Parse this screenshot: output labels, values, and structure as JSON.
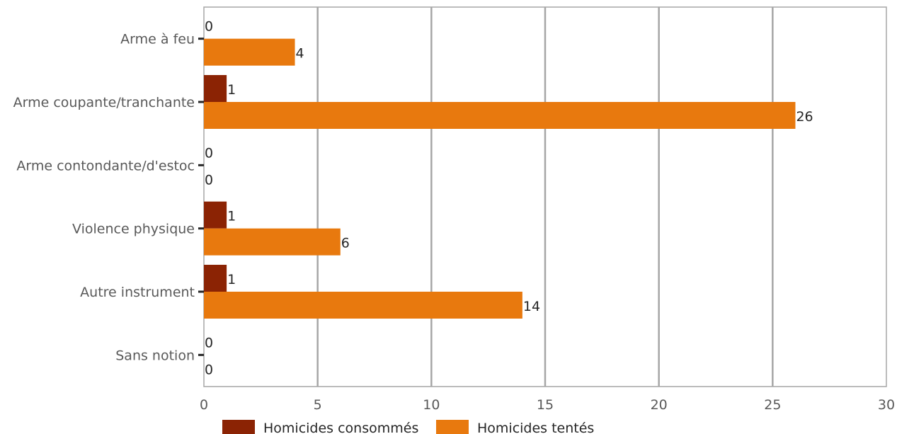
{
  "chart_data": {
    "type": "bar",
    "orientation": "horizontal",
    "categories": [
      "Arme à feu",
      "Arme coupante/tranchante",
      "Arme contondante/d'estoc",
      "Violence physique",
      "Autre instrument",
      "Sans notion"
    ],
    "series": [
      {
        "name": "Homicides consommés",
        "values": [
          0,
          1,
          0,
          1,
          1,
          0
        ],
        "color": "#8B2304"
      },
      {
        "name": "Homicides tentés",
        "values": [
          4,
          26,
          0,
          6,
          14,
          0
        ],
        "color": "#E8790E"
      }
    ],
    "xlim": [
      0,
      30
    ],
    "xticks": [
      0,
      5,
      10,
      15,
      20,
      25,
      30
    ],
    "grid": true,
    "legend_position": "bottom"
  }
}
